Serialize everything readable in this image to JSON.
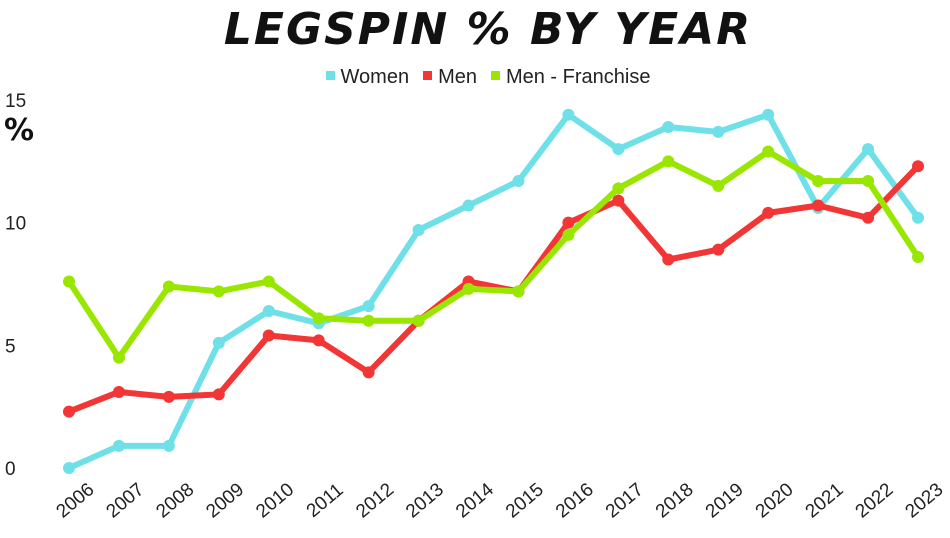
{
  "chart_data": {
    "type": "line",
    "title": "LEGSPIN % BY YEAR",
    "ylabel": "%",
    "xlabel": "",
    "ylim": [
      0,
      15
    ],
    "yticks": [
      0,
      5,
      10,
      15
    ],
    "legend_position": "top-center",
    "grid": false,
    "x": [
      "2006",
      "2007",
      "2008",
      "2009",
      "2010",
      "2011",
      "2012",
      "2013",
      "2014",
      "2015",
      "2016",
      "2017",
      "2018",
      "2019",
      "2020",
      "2021",
      "2022",
      "2023"
    ],
    "series": [
      {
        "name": "Women",
        "color": "#6fe0e8",
        "values": [
          0.0,
          0.9,
          0.9,
          5.1,
          6.4,
          5.9,
          6.6,
          9.7,
          10.7,
          11.7,
          14.4,
          13.0,
          13.9,
          13.7,
          14.4,
          10.6,
          13.0,
          10.2
        ]
      },
      {
        "name": "Men",
        "color": "#f23535",
        "values": [
          2.3,
          3.1,
          2.9,
          3.0,
          5.4,
          5.2,
          3.9,
          6.0,
          7.6,
          7.2,
          10.0,
          10.9,
          8.5,
          8.9,
          10.4,
          10.7,
          10.2,
          12.3
        ]
      },
      {
        "name": "Men - Franchise",
        "color": "#99e600",
        "values": [
          7.6,
          4.5,
          7.4,
          7.2,
          7.6,
          6.1,
          6.0,
          6.0,
          7.3,
          7.2,
          9.5,
          11.4,
          12.5,
          11.5,
          12.9,
          11.7,
          11.7,
          8.6
        ]
      }
    ]
  }
}
